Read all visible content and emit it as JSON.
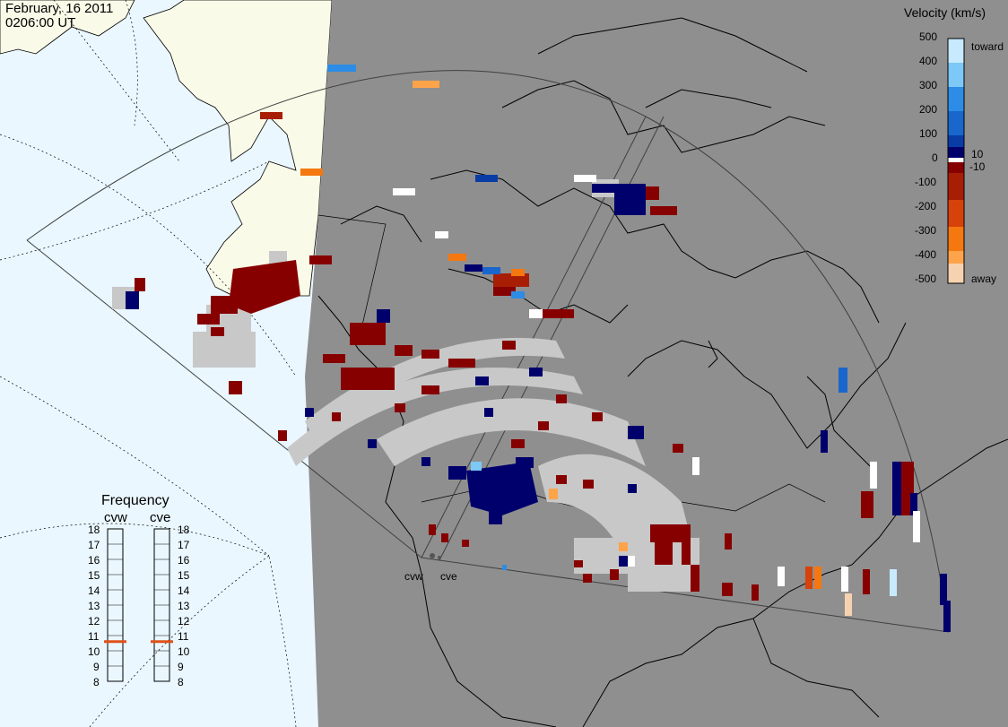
{
  "header": {
    "date": "February, 16 2011",
    "time": "0206:00 UT"
  },
  "colorbar": {
    "title": "Velocity (km/s)",
    "ticks": [
      "500",
      "400",
      "300",
      "200",
      "100",
      "0",
      "-100",
      "-200",
      "-300",
      "-400",
      "-500"
    ],
    "extra_ticks": [
      "10",
      "-10"
    ],
    "toward_label": "toward",
    "away_label": "away",
    "colors": [
      "#f7d2b0",
      "#fda44a",
      "#f4780f",
      "#d6420a",
      "#a81e05",
      "#870000",
      "#00006d",
      "#0a3ca6",
      "#1966cc",
      "#2c8ce6",
      "#7cc8f6",
      "#c8eaff"
    ]
  },
  "frequency": {
    "title": "Frequency",
    "radars": [
      {
        "name": "cvw",
        "value": 10.6
      },
      {
        "name": "cve",
        "value": 10.6
      }
    ],
    "scale": [
      "18",
      "17",
      "16",
      "15",
      "14",
      "13",
      "12",
      "11",
      "10",
      "9",
      "8"
    ],
    "marker_color": "#e0501a"
  },
  "radar_labels": [
    "cvw",
    "cve"
  ],
  "map_colors": {
    "night": "#8f8f8f",
    "day_ocean": "#eaf7ff",
    "day_land": "#fafae8",
    "ground_scatter": "#c8c8c8"
  }
}
